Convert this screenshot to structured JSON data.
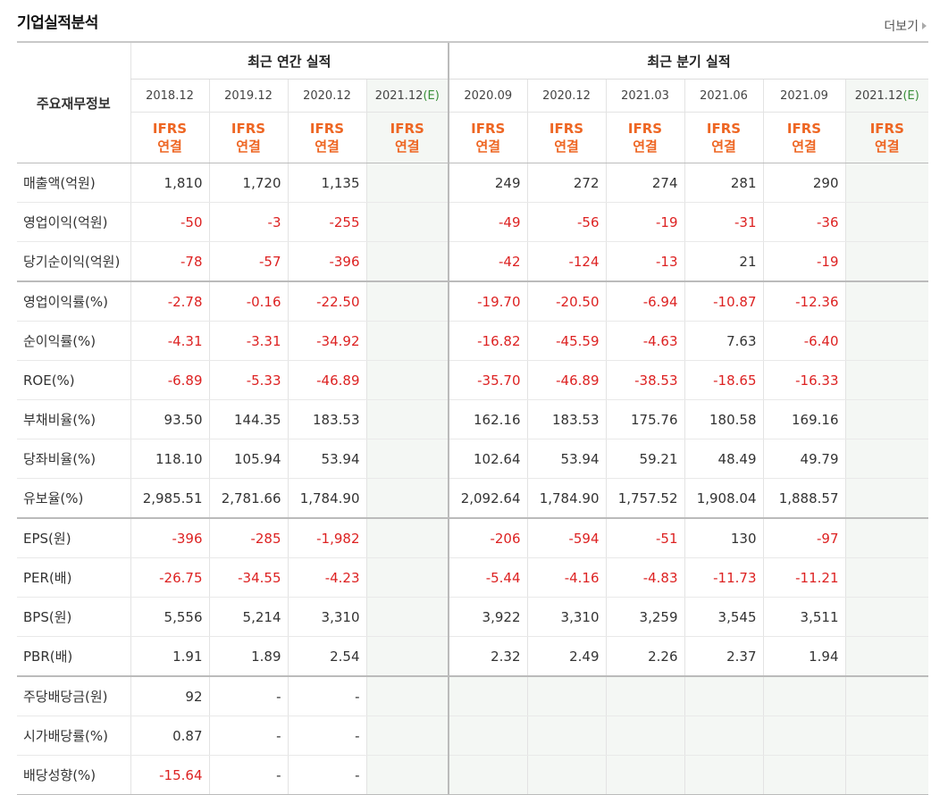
{
  "header": {
    "title": "기업실적분석",
    "more_label": "더보기"
  },
  "table": {
    "stub_label": "주요재무정보",
    "group_annual": "최근 연간 실적",
    "group_quarter": "최근 분기 실적",
    "periods": [
      "2018.12",
      "2019.12",
      "2020.12",
      "2021.12",
      "2020.09",
      "2020.12",
      "2021.03",
      "2021.06",
      "2021.09",
      "2021.12"
    ],
    "est_suffix": "(E)",
    "ifrs_top": "IFRS",
    "ifrs_bottom": "연결",
    "rows": [
      {
        "label": "매출액(억원)",
        "v": [
          "1,810",
          "1,720",
          "1,135",
          "",
          "249",
          "272",
          "274",
          "281",
          "290",
          ""
        ]
      },
      {
        "label": "영업이익(억원)",
        "v": [
          "-50",
          "-3",
          "-255",
          "",
          "-49",
          "-56",
          "-19",
          "-31",
          "-36",
          ""
        ]
      },
      {
        "label": "당기순이익(억원)",
        "v": [
          "-78",
          "-57",
          "-396",
          "",
          "-42",
          "-124",
          "-13",
          "21",
          "-19",
          ""
        ]
      },
      {
        "label": "영업이익률(%)",
        "v": [
          "-2.78",
          "-0.16",
          "-22.50",
          "",
          "-19.70",
          "-20.50",
          "-6.94",
          "-10.87",
          "-12.36",
          ""
        ]
      },
      {
        "label": "순이익률(%)",
        "v": [
          "-4.31",
          "-3.31",
          "-34.92",
          "",
          "-16.82",
          "-45.59",
          "-4.63",
          "7.63",
          "-6.40",
          ""
        ]
      },
      {
        "label": "ROE(%)",
        "v": [
          "-6.89",
          "-5.33",
          "-46.89",
          "",
          "-35.70",
          "-46.89",
          "-38.53",
          "-18.65",
          "-16.33",
          ""
        ]
      },
      {
        "label": "부채비율(%)",
        "v": [
          "93.50",
          "144.35",
          "183.53",
          "",
          "162.16",
          "183.53",
          "175.76",
          "180.58",
          "169.16",
          ""
        ]
      },
      {
        "label": "당좌비율(%)",
        "v": [
          "118.10",
          "105.94",
          "53.94",
          "",
          "102.64",
          "53.94",
          "59.21",
          "48.49",
          "49.79",
          ""
        ]
      },
      {
        "label": "유보율(%)",
        "v": [
          "2,985.51",
          "2,781.66",
          "1,784.90",
          "",
          "2,092.64",
          "1,784.90",
          "1,757.52",
          "1,908.04",
          "1,888.57",
          ""
        ]
      },
      {
        "label": "EPS(원)",
        "v": [
          "-396",
          "-285",
          "-1,982",
          "",
          "-206",
          "-594",
          "-51",
          "130",
          "-97",
          ""
        ]
      },
      {
        "label": "PER(배)",
        "v": [
          "-26.75",
          "-34.55",
          "-4.23",
          "",
          "-5.44",
          "-4.16",
          "-4.83",
          "-11.73",
          "-11.21",
          ""
        ]
      },
      {
        "label": "BPS(원)",
        "v": [
          "5,556",
          "5,214",
          "3,310",
          "",
          "3,922",
          "3,310",
          "3,259",
          "3,545",
          "3,511",
          ""
        ]
      },
      {
        "label": "PBR(배)",
        "v": [
          "1.91",
          "1.89",
          "2.54",
          "",
          "2.32",
          "2.49",
          "2.26",
          "2.37",
          "1.94",
          ""
        ]
      },
      {
        "label": "주당배당금(원)",
        "v": [
          "92",
          "-",
          "-",
          "",
          "",
          "",
          "",
          "",
          "",
          ""
        ]
      },
      {
        "label": "시가배당률(%)",
        "v": [
          "0.87",
          "-",
          "-",
          "",
          "",
          "",
          "",
          "",
          "",
          ""
        ]
      },
      {
        "label": "배당성향(%)",
        "v": [
          "-15.64",
          "-",
          "-",
          "",
          "",
          "",
          "",
          "",
          "",
          ""
        ]
      }
    ]
  }
}
